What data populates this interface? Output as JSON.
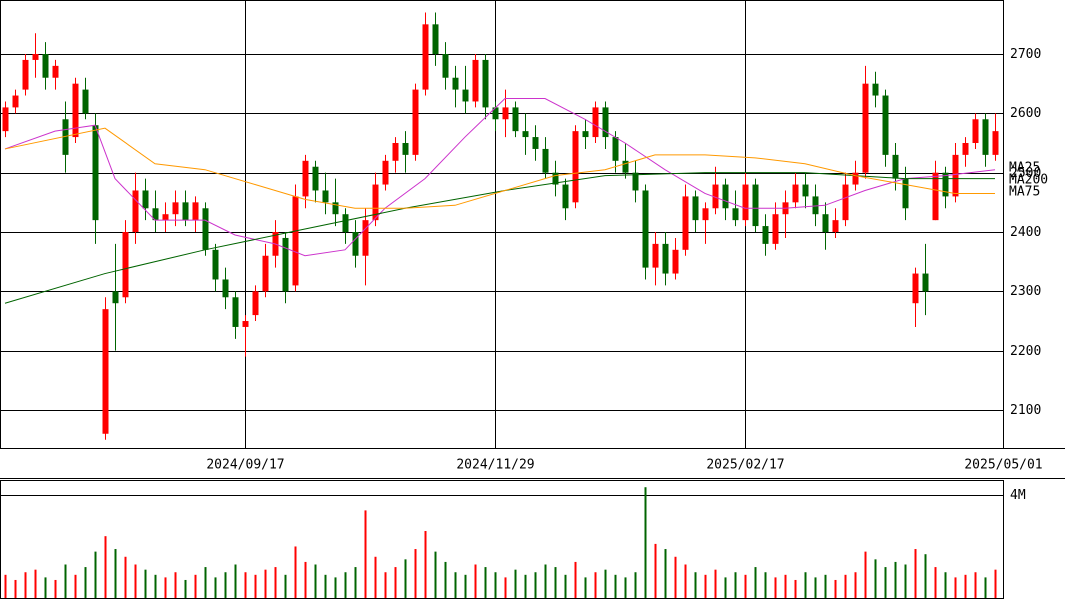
{
  "chart_data": {
    "type": "candlestick",
    "up_color": "#ff0000",
    "down_color": "#006400",
    "ylim": [
      2036,
      2791
    ],
    "yticks": [
      2100,
      2200,
      2300,
      2400,
      2500,
      2600,
      2700
    ],
    "xlim": [
      -0.5,
      99.8
    ],
    "xticks": [
      {
        "value": 24,
        "label": "2024/09/17"
      },
      {
        "value": 49,
        "label": "2024/11/29"
      },
      {
        "value": 74,
        "label": "2025/02/17"
      },
      {
        "value": 99.8,
        "label": "2025/05/01"
      }
    ],
    "ohlc": [
      [
        2570,
        2620,
        2560,
        2610
      ],
      [
        2610,
        2640,
        2600,
        2630
      ],
      [
        2640,
        2700,
        2630,
        2690
      ],
      [
        2690,
        2735,
        2660,
        2700
      ],
      [
        2700,
        2720,
        2640,
        2660
      ],
      [
        2660,
        2690,
        2640,
        2680
      ],
      [
        2590,
        2620,
        2500,
        2530
      ],
      [
        2560,
        2660,
        2550,
        2650
      ],
      [
        2640,
        2660,
        2590,
        2600
      ],
      [
        2580,
        2600,
        2380,
        2420
      ],
      [
        2060,
        2290,
        2050,
        2270
      ],
      [
        2300,
        2380,
        2200,
        2280
      ],
      [
        2290,
        2420,
        2280,
        2400
      ],
      [
        2400,
        2500,
        2380,
        2470
      ],
      [
        2470,
        2490,
        2420,
        2440
      ],
      [
        2440,
        2470,
        2400,
        2420
      ],
      [
        2420,
        2450,
        2400,
        2430
      ],
      [
        2430,
        2470,
        2410,
        2450
      ],
      [
        2450,
        2470,
        2410,
        2420
      ],
      [
        2420,
        2460,
        2400,
        2450
      ],
      [
        2440,
        2450,
        2360,
        2370
      ],
      [
        2370,
        2380,
        2300,
        2320
      ],
      [
        2320,
        2340,
        2270,
        2290
      ],
      [
        2290,
        2300,
        2220,
        2240
      ],
      [
        2240,
        2260,
        2190,
        2250
      ],
      [
        2260,
        2310,
        2250,
        2300
      ],
      [
        2300,
        2380,
        2290,
        2360
      ],
      [
        2360,
        2420,
        2340,
        2400
      ],
      [
        2390,
        2400,
        2280,
        2300
      ],
      [
        2310,
        2480,
        2300,
        2460
      ],
      [
        2460,
        2530,
        2440,
        2520
      ],
      [
        2510,
        2520,
        2450,
        2470
      ],
      [
        2470,
        2500,
        2430,
        2450
      ],
      [
        2450,
        2490,
        2410,
        2430
      ],
      [
        2430,
        2440,
        2380,
        2400
      ],
      [
        2400,
        2420,
        2340,
        2360
      ],
      [
        2360,
        2440,
        2310,
        2420
      ],
      [
        2420,
        2500,
        2410,
        2480
      ],
      [
        2480,
        2530,
        2470,
        2520
      ],
      [
        2520,
        2560,
        2500,
        2550
      ],
      [
        2550,
        2570,
        2500,
        2530
      ],
      [
        2530,
        2650,
        2520,
        2640
      ],
      [
        2640,
        2770,
        2630,
        2750
      ],
      [
        2750,
        2770,
        2680,
        2700
      ],
      [
        2700,
        2720,
        2640,
        2660
      ],
      [
        2660,
        2680,
        2610,
        2640
      ],
      [
        2640,
        2680,
        2600,
        2620
      ],
      [
        2620,
        2700,
        2610,
        2690
      ],
      [
        2690,
        2700,
        2590,
        2610
      ],
      [
        2610,
        2620,
        2570,
        2590
      ],
      [
        2590,
        2640,
        2560,
        2610
      ],
      [
        2610,
        2620,
        2560,
        2570
      ],
      [
        2570,
        2600,
        2530,
        2560
      ],
      [
        2560,
        2580,
        2520,
        2540
      ],
      [
        2540,
        2560,
        2490,
        2500
      ],
      [
        2500,
        2520,
        2460,
        2480
      ],
      [
        2480,
        2490,
        2420,
        2440
      ],
      [
        2450,
        2580,
        2440,
        2570
      ],
      [
        2570,
        2590,
        2540,
        2560
      ],
      [
        2560,
        2620,
        2550,
        2610
      ],
      [
        2610,
        2620,
        2540,
        2560
      ],
      [
        2560,
        2570,
        2500,
        2520
      ],
      [
        2520,
        2550,
        2490,
        2500
      ],
      [
        2500,
        2520,
        2450,
        2470
      ],
      [
        2470,
        2480,
        2320,
        2340
      ],
      [
        2340,
        2400,
        2310,
        2380
      ],
      [
        2380,
        2400,
        2310,
        2330
      ],
      [
        2330,
        2390,
        2320,
        2370
      ],
      [
        2370,
        2480,
        2360,
        2460
      ],
      [
        2460,
        2470,
        2400,
        2420
      ],
      [
        2420,
        2450,
        2380,
        2440
      ],
      [
        2440,
        2510,
        2430,
        2480
      ],
      [
        2480,
        2490,
        2420,
        2440
      ],
      [
        2440,
        2470,
        2410,
        2420
      ],
      [
        2420,
        2500,
        2410,
        2480
      ],
      [
        2480,
        2490,
        2400,
        2410
      ],
      [
        2410,
        2430,
        2360,
        2380
      ],
      [
        2380,
        2450,
        2370,
        2430
      ],
      [
        2430,
        2470,
        2390,
        2450
      ],
      [
        2450,
        2500,
        2440,
        2480
      ],
      [
        2480,
        2500,
        2440,
        2460
      ],
      [
        2460,
        2480,
        2410,
        2430
      ],
      [
        2430,
        2450,
        2370,
        2400
      ],
      [
        2400,
        2440,
        2390,
        2420
      ],
      [
        2420,
        2500,
        2410,
        2480
      ],
      [
        2480,
        2520,
        2470,
        2500
      ],
      [
        2500,
        2680,
        2490,
        2650
      ],
      [
        2650,
        2670,
        2610,
        2630
      ],
      [
        2630,
        2640,
        2510,
        2530
      ],
      [
        2530,
        2550,
        2470,
        2490
      ],
      [
        2490,
        2510,
        2420,
        2440
      ],
      [
        2280,
        2340,
        2240,
        2330
      ],
      [
        2330,
        2380,
        2260,
        2300
      ],
      [
        2420,
        2520,
        2420,
        2500
      ],
      [
        2500,
        2510,
        2440,
        2460
      ],
      [
        2460,
        2550,
        2450,
        2530
      ],
      [
        2530,
        2560,
        2510,
        2550
      ],
      [
        2550,
        2600,
        2540,
        2590
      ],
      [
        2590,
        2600,
        2510,
        2530
      ],
      [
        2530,
        2600,
        2520,
        2570
      ]
    ],
    "series": [
      {
        "name": "MA25",
        "color": "#cc33cc",
        "x": [
          0,
          5,
          9,
          11,
          15,
          20,
          23,
          27,
          30,
          34,
          38,
          42,
          46,
          50,
          54,
          58,
          62,
          66,
          70,
          74,
          78,
          82,
          86,
          90,
          94,
          99
        ],
        "values": [
          2540,
          2570,
          2580,
          2490,
          2420,
          2420,
          2395,
          2380,
          2360,
          2370,
          2440,
          2490,
          2560,
          2625,
          2625,
          2590,
          2550,
          2505,
          2465,
          2440,
          2440,
          2445,
          2470,
          2490,
          2495,
          2505
        ]
      },
      {
        "name": "MA200",
        "color": "#006400",
        "x": [
          0,
          10,
          20,
          30,
          40,
          50,
          60,
          70,
          80,
          90,
          99
        ],
        "values": [
          2280,
          2330,
          2370,
          2405,
          2440,
          2470,
          2495,
          2500,
          2500,
          2490,
          2490
        ]
      },
      {
        "name": "MA75",
        "color": "#ff9900",
        "x": [
          0,
          10,
          15,
          20,
          25,
          30,
          35,
          40,
          45,
          50,
          55,
          60,
          65,
          70,
          75,
          80,
          85,
          90,
          95,
          99
        ],
        "values": [
          2540,
          2575,
          2515,
          2505,
          2480,
          2455,
          2440,
          2440,
          2445,
          2470,
          2495,
          2505,
          2530,
          2530,
          2525,
          2515,
          2495,
          2480,
          2465,
          2465
        ]
      }
    ],
    "volume": {
      "ylim": [
        0,
        4.58
      ],
      "yticks": [
        {
          "value": 4,
          "label": "4M"
        }
      ],
      "values": [
        0.9,
        0.7,
        1.0,
        1.1,
        0.8,
        0.7,
        1.3,
        0.9,
        1.2,
        1.8,
        2.4,
        1.9,
        1.6,
        1.3,
        1.1,
        0.9,
        0.8,
        1.0,
        0.7,
        0.9,
        1.2,
        0.8,
        1.0,
        1.3,
        1.0,
        0.9,
        1.1,
        1.2,
        0.9,
        2.0,
        1.4,
        1.3,
        0.9,
        0.8,
        1.0,
        1.2,
        3.4,
        1.6,
        1.0,
        1.2,
        1.5,
        1.9,
        2.6,
        1.8,
        1.4,
        1.0,
        0.9,
        1.3,
        1.2,
        1.0,
        0.8,
        1.1,
        0.9,
        1.0,
        1.3,
        1.2,
        0.9,
        1.4,
        0.8,
        1.0,
        1.1,
        0.9,
        0.8,
        1.0,
        4.3,
        2.1,
        1.9,
        1.6,
        1.3,
        1.0,
        0.9,
        1.1,
        0.8,
        1.0,
        0.9,
        1.2,
        1.0,
        0.8,
        0.9,
        0.7,
        1.0,
        0.8,
        0.9,
        0.7,
        0.9,
        1.0,
        1.8,
        1.5,
        1.2,
        1.4,
        1.3,
        1.9,
        1.7,
        1.2,
        1.0,
        0.8,
        0.9,
        1.0,
        0.8,
        1.1
      ]
    }
  }
}
